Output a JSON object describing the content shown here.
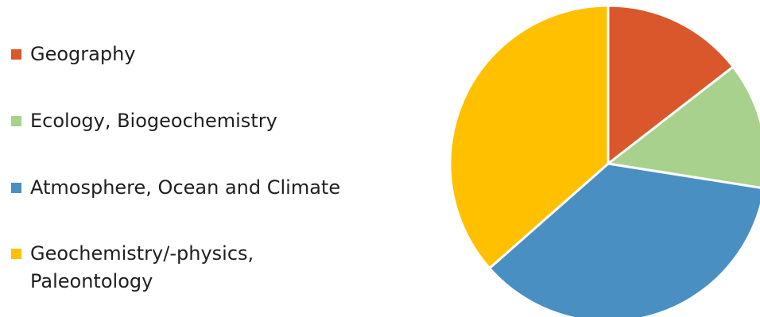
{
  "chart_data": {
    "type": "pie",
    "title": "",
    "legend_position": "left",
    "slices": [
      {
        "label": "Geography",
        "value": 14.5,
        "color": "#D9572B"
      },
      {
        "label": "Ecology, Biogeochemistry",
        "value": 13.0,
        "color": "#A9D18E"
      },
      {
        "label": "Atmosphere, Ocean and Climate",
        "value": 36.0,
        "color": "#4A8FC2"
      },
      {
        "label": "Geochemistry/-physics,\nPaleontology",
        "value": 36.5,
        "color": "#FFC000"
      }
    ]
  }
}
